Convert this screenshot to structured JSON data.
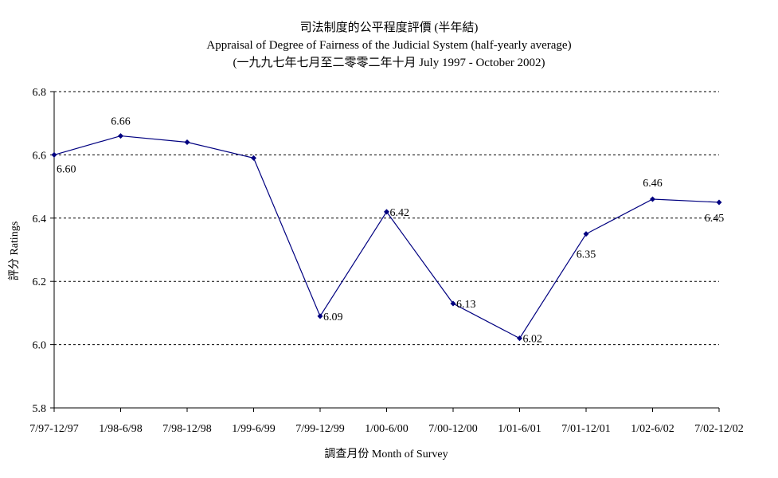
{
  "chart_data": {
    "type": "line",
    "title": "司法制度的公平程度評價 (半年結)",
    "subtitle": "Appraisal of Degree of Fairness of the Judicial System (half-yearly average)",
    "subtitle2": "(一九九七年七月至二零零二年十月 July 1997 - October 2002)",
    "xlabel": "調查月份 Month of Survey",
    "ylabel": "評分 Ratings",
    "categories": [
      "7/97-12/97",
      "1/98-6/98",
      "7/98-12/98",
      "1/99-6/99",
      "7/99-12/99",
      "1/00-6/00",
      "7/00-12/00",
      "1/01-6/01",
      "7/01-12/01",
      "1/02-6/02",
      "7/02-12/02"
    ],
    "series": [
      {
        "values": [
          6.6,
          6.66,
          6.64,
          6.59,
          6.09,
          6.42,
          6.13,
          6.02,
          6.35,
          6.46,
          6.45
        ],
        "data_labels": [
          "6.60",
          "6.66",
          "",
          "",
          "6.09",
          "6.42",
          "6.13",
          "6.02",
          "6.35",
          "6.46",
          "6.45"
        ],
        "color": "#000080"
      }
    ],
    "ylim": [
      5.8,
      6.8
    ],
    "yticks": [
      "5.8",
      "6.0",
      "6.2",
      "6.4",
      "6.6",
      "6.8"
    ],
    "grid": true,
    "legend": "none"
  }
}
